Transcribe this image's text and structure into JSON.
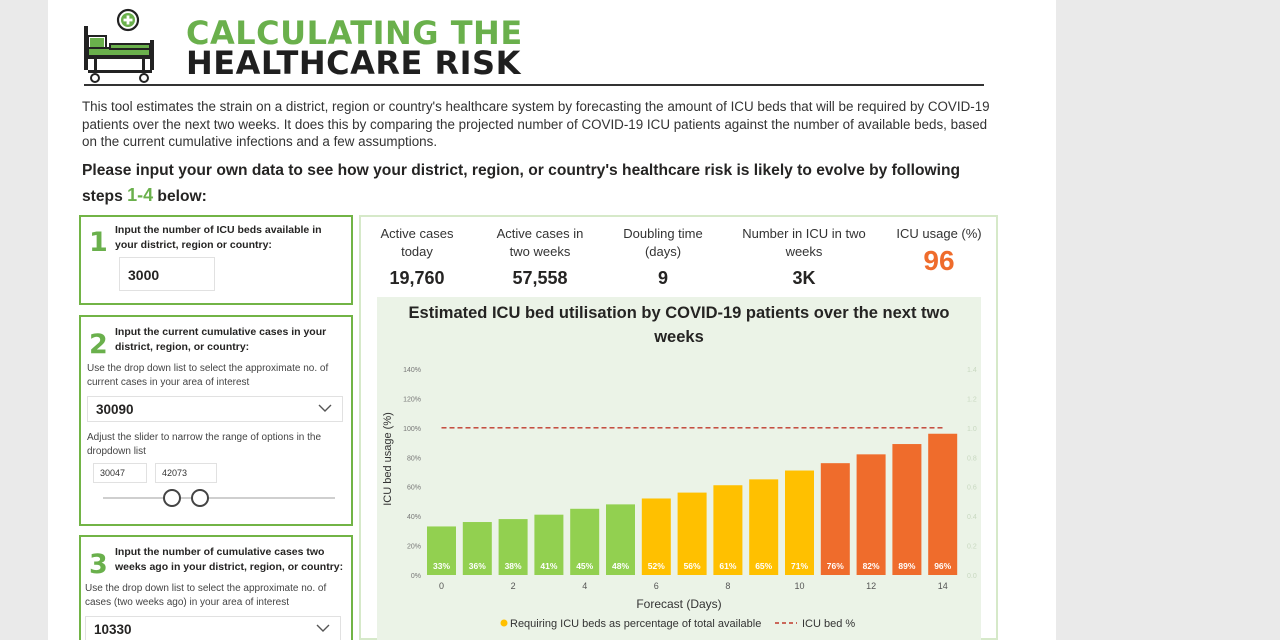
{
  "header": {
    "title_line1": "CALCULATING THE",
    "title_line2": "HEALTHCARE RISK",
    "intro": "This tool estimates the strain on a district, region or country's healthcare system by forecasting the amount of ICU beds that will be required by COVID-19 patients over the next two weeks. It does this by comparing the projected number of COVID-19 ICU patients against the number of available beds, based on the current cumulative infections and a few assumptions.",
    "instruction_pre": "Please input your own data to see how your district, region, or country's healthcare risk is likely to evolve by following steps ",
    "instruction_steps": "1-4",
    "instruction_post": " below:"
  },
  "step1": {
    "number": "1",
    "title": "Input the number of ICU beds available in your district, region or country:",
    "value": "3000"
  },
  "step2": {
    "number": "2",
    "title": "Input the current cumulative cases in your district, region, or country:",
    "help_dropdown": "Use the drop down list to select the approximate no. of current cases in your area of interest",
    "selected": "30090",
    "help_slider": "Adjust the slider to narrow the range of options in the dropdown list",
    "range_min": "30047",
    "range_max": "42073"
  },
  "step3": {
    "number": "3",
    "title": "Input the number of cumulative cases two weeks ago in your district, region, or country:",
    "help_dropdown": "Use the drop down list to select the approximate no. of cases (two weeks ago) in your area of interest",
    "selected": "10330"
  },
  "stats": {
    "active_today_label": "Active cases today",
    "active_today_value": "19,760",
    "active_two_weeks_label": "Active cases in two weeks",
    "active_two_weeks_value": "57,558",
    "doubling_label": "Doubling time (days)",
    "doubling_value": "9",
    "icu_two_weeks_label": "Number in ICU in two weeks",
    "icu_two_weeks_value": "3K",
    "icu_usage_label": "ICU usage (%)",
    "icu_usage_value": "96"
  },
  "colors": {
    "green": "#92d050",
    "yellow": "#ffc000",
    "orange": "#ef6c2c",
    "accent_green": "#6ab04c",
    "threshold": "#c0392b"
  },
  "chart_data": {
    "type": "bar",
    "title": "Estimated ICU bed utilisation by COVID-19 patients over the next two weeks",
    "xlabel": "Forecast (Days)",
    "ylabel": "ICU bed usage (%)",
    "x": [
      0,
      1,
      2,
      3,
      4,
      5,
      6,
      7,
      8,
      9,
      10,
      11,
      12,
      13,
      14
    ],
    "values": [
      33,
      36,
      38,
      41,
      45,
      48,
      52,
      56,
      61,
      65,
      71,
      76,
      82,
      89,
      96
    ],
    "labels": [
      "33%",
      "36%",
      "38%",
      "41%",
      "45%",
      "48%",
      "52%",
      "56%",
      "61%",
      "65%",
      "71%",
      "76%",
      "82%",
      "89%",
      "96%"
    ],
    "bar_colors": [
      "green",
      "green",
      "green",
      "green",
      "green",
      "green",
      "yellow",
      "yellow",
      "yellow",
      "yellow",
      "yellow",
      "orange",
      "orange",
      "orange",
      "orange"
    ],
    "x_ticks": [
      "0",
      "2",
      "4",
      "6",
      "8",
      "10",
      "12",
      "14"
    ],
    "y_ticks": [
      "0%",
      "20%",
      "40%",
      "60%",
      "80%",
      "100%",
      "120%",
      "140%"
    ],
    "y2_ticks": [
      "0.0",
      "0.2",
      "0.4",
      "0.6",
      "0.8",
      "1.0",
      "1.2",
      "1.4"
    ],
    "ylim": [
      0,
      140
    ],
    "threshold": 100,
    "legend": [
      {
        "label": "Requiring ICU beds as percentage of total available"
      },
      {
        "label": "ICU bed %"
      }
    ]
  }
}
